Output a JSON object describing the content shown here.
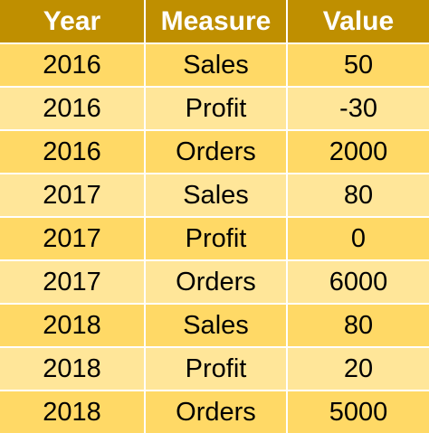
{
  "table": {
    "headers": [
      "Year",
      "Measure",
      "Value"
    ],
    "rows": [
      [
        "2016",
        "Sales",
        "50"
      ],
      [
        "2016",
        "Profit",
        "-30"
      ],
      [
        "2016",
        "Orders",
        "2000"
      ],
      [
        "2017",
        "Sales",
        "80"
      ],
      [
        "2017",
        "Profit",
        "0"
      ],
      [
        "2017",
        "Orders",
        "6000"
      ],
      [
        "2018",
        "Sales",
        "80"
      ],
      [
        "2018",
        "Profit",
        "20"
      ],
      [
        "2018",
        "Orders",
        "5000"
      ]
    ]
  },
  "colors": {
    "header_bg": "#bf8f00",
    "header_text": "#ffffff",
    "row_odd_bg": "#ffd966",
    "row_even_bg": "#ffe699",
    "border": "#ffffff"
  }
}
